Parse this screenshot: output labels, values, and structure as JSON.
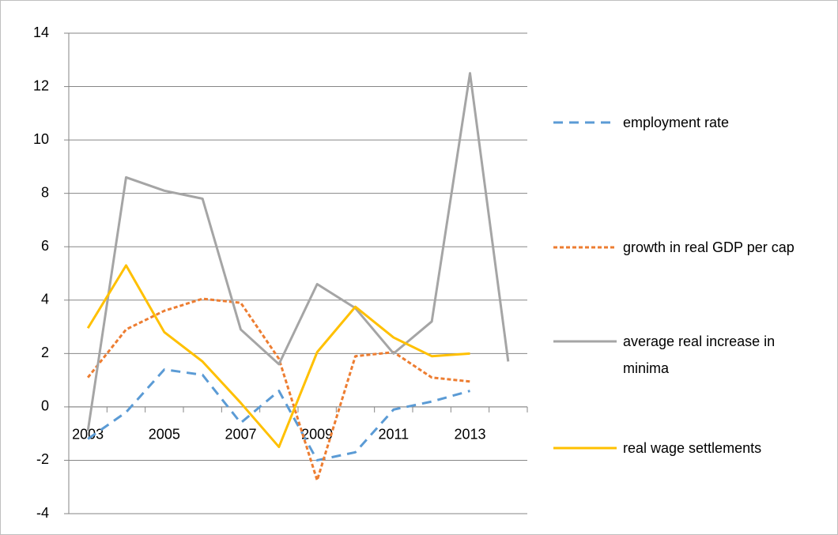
{
  "chart_data": {
    "type": "line",
    "categories": [
      "2003",
      null,
      "2005",
      null,
      "2007",
      null,
      "2009",
      null,
      "2011",
      null,
      "2013",
      null
    ],
    "ylim": [
      -4,
      14
    ],
    "yticks": [
      -4,
      -2,
      0,
      2,
      4,
      6,
      8,
      10,
      12,
      14
    ],
    "grid": true,
    "legend": "right",
    "series": [
      {
        "name": "employment rate",
        "color": "#5b9bd5",
        "line_style": "long-dash",
        "values": [
          -1.2,
          -0.2,
          1.4,
          1.2,
          -0.6,
          0.6,
          -2.0,
          -1.7,
          -0.1,
          0.2,
          0.6,
          null
        ]
      },
      {
        "name": "growth in real GDP per cap",
        "color": "#ed7d31",
        "line_style": "dash",
        "values": [
          1.1,
          2.9,
          3.6,
          4.05,
          3.9,
          1.8,
          -2.75,
          1.9,
          2.05,
          1.1,
          0.95,
          null
        ]
      },
      {
        "name": "average real increase in minima",
        "color": "#a5a5a5",
        "line_style": "solid",
        "values": [
          -0.9,
          8.6,
          8.1,
          7.8,
          2.9,
          1.6,
          4.6,
          3.7,
          2.0,
          3.2,
          12.5,
          1.7
        ]
      },
      {
        "name": "real wage settlements",
        "color": "#ffc000",
        "line_style": "solid",
        "values": [
          2.95,
          5.3,
          2.8,
          1.7,
          0.15,
          -1.5,
          2.05,
          3.75,
          2.6,
          1.9,
          2.0,
          null
        ]
      }
    ]
  }
}
